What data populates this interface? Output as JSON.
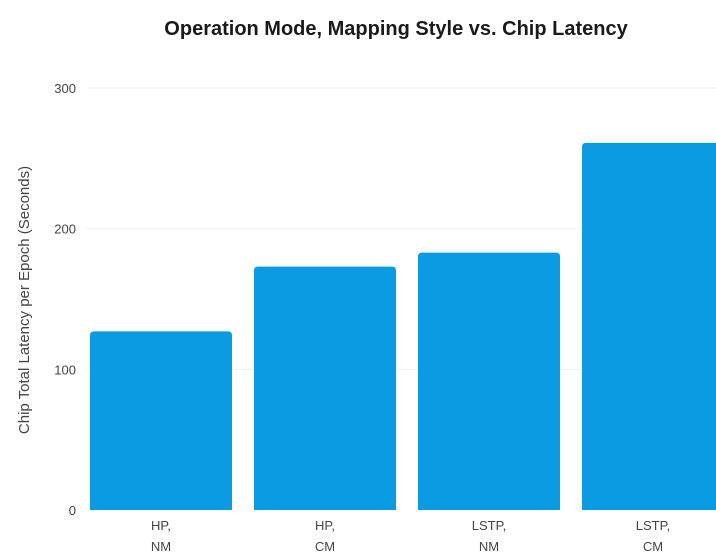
{
  "chart_data": {
    "type": "bar",
    "title": "Operation Mode, Mapping Style vs. Chip Latency",
    "xlabel": "",
    "ylabel": "Chip Total Latency per Epoch (Seconds)",
    "categories": [
      [
        "HP,",
        "NM"
      ],
      [
        "HP,",
        "CM"
      ],
      [
        "LSTP,",
        "NM"
      ],
      [
        "LSTP,",
        "CM"
      ]
    ],
    "values": [
      127,
      173,
      183,
      261
    ],
    "ylim": [
      0,
      300
    ],
    "yticks": [
      0,
      100,
      200,
      300
    ],
    "grid": true,
    "legend": "none",
    "bar_color": "#0a9be3",
    "gridline_color": "#f1f1f1"
  }
}
